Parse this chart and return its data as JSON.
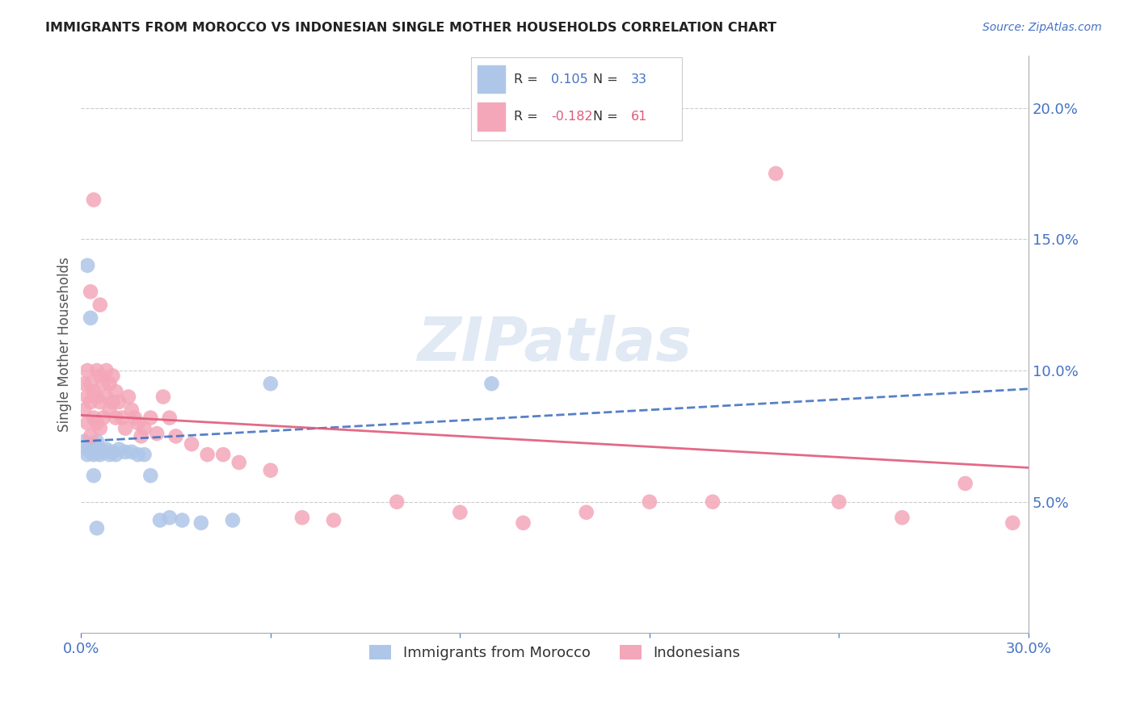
{
  "title": "IMMIGRANTS FROM MOROCCO VS INDONESIAN SINGLE MOTHER HOUSEHOLDS CORRELATION CHART",
  "source": "Source: ZipAtlas.com",
  "ylabel": "Single Mother Households",
  "right_yticks": [
    "5.0%",
    "10.0%",
    "15.0%",
    "20.0%"
  ],
  "right_ytick_vals": [
    0.05,
    0.1,
    0.15,
    0.2
  ],
  "xlim": [
    0.0,
    0.3
  ],
  "ylim": [
    0.0,
    0.22
  ],
  "morocco_color": "#aec6e8",
  "indonesia_color": "#f4a7b9",
  "morocco_line_color": "#4472c4",
  "indonesia_line_color": "#e05a7a",
  "background_color": "#ffffff",
  "grid_color": "#cccccc",
  "axis_color": "#4472c4",
  "morocco_x": [
    0.001,
    0.002,
    0.002,
    0.003,
    0.003,
    0.004,
    0.004,
    0.005,
    0.005,
    0.006,
    0.006,
    0.007,
    0.008,
    0.009,
    0.01,
    0.011,
    0.012,
    0.014,
    0.016,
    0.018,
    0.02,
    0.022,
    0.025,
    0.028,
    0.032,
    0.038,
    0.048,
    0.06,
    0.13,
    0.002,
    0.003,
    0.004,
    0.005
  ],
  "morocco_y": [
    0.073,
    0.07,
    0.068,
    0.069,
    0.071,
    0.072,
    0.068,
    0.073,
    0.069,
    0.07,
    0.068,
    0.069,
    0.07,
    0.068,
    0.069,
    0.068,
    0.07,
    0.069,
    0.069,
    0.068,
    0.068,
    0.06,
    0.043,
    0.044,
    0.043,
    0.042,
    0.043,
    0.095,
    0.095,
    0.14,
    0.12,
    0.06,
    0.04
  ],
  "indonesia_x": [
    0.001,
    0.001,
    0.002,
    0.002,
    0.002,
    0.003,
    0.003,
    0.003,
    0.004,
    0.004,
    0.005,
    0.005,
    0.005,
    0.006,
    0.006,
    0.006,
    0.007,
    0.007,
    0.008,
    0.008,
    0.009,
    0.009,
    0.01,
    0.01,
    0.011,
    0.011,
    0.012,
    0.013,
    0.014,
    0.015,
    0.016,
    0.017,
    0.018,
    0.019,
    0.02,
    0.022,
    0.024,
    0.026,
    0.028,
    0.03,
    0.035,
    0.04,
    0.045,
    0.05,
    0.06,
    0.07,
    0.08,
    0.1,
    0.12,
    0.14,
    0.16,
    0.18,
    0.2,
    0.22,
    0.24,
    0.26,
    0.28,
    0.295,
    0.003,
    0.004,
    0.006
  ],
  "indonesia_y": [
    0.095,
    0.085,
    0.1,
    0.09,
    0.08,
    0.095,
    0.088,
    0.075,
    0.092,
    0.082,
    0.1,
    0.09,
    0.08,
    0.098,
    0.088,
    0.078,
    0.095,
    0.082,
    0.1,
    0.09,
    0.095,
    0.085,
    0.098,
    0.088,
    0.092,
    0.082,
    0.088,
    0.082,
    0.078,
    0.09,
    0.085,
    0.082,
    0.08,
    0.075,
    0.078,
    0.082,
    0.076,
    0.09,
    0.082,
    0.075,
    0.072,
    0.068,
    0.068,
    0.065,
    0.062,
    0.044,
    0.043,
    0.05,
    0.046,
    0.042,
    0.046,
    0.05,
    0.05,
    0.175,
    0.05,
    0.044,
    0.057,
    0.042,
    0.13,
    0.165,
    0.125
  ],
  "morocco_line_x": [
    0.0,
    0.3
  ],
  "morocco_line_y": [
    0.073,
    0.093
  ],
  "indonesia_line_x": [
    0.0,
    0.3
  ],
  "indonesia_line_y": [
    0.083,
    0.063
  ]
}
